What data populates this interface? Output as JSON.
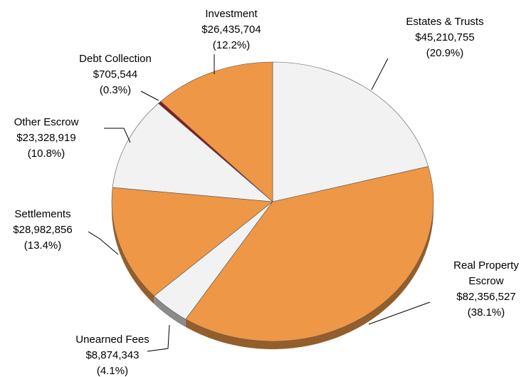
{
  "chart_data": {
    "type": "pie",
    "categories": [
      "Estates & Trusts",
      "Real Property Escrow",
      "Unearned Fees",
      "Settlements",
      "Other Escrow",
      "Debt Collection",
      "Investment"
    ],
    "values": [
      45210755,
      82356527,
      8874343,
      28982856,
      23328919,
      705544,
      26435704
    ],
    "value_labels": [
      "$45,210,755",
      "$82,356,527",
      "$8,874,343",
      "$28,982,856",
      "$23,328,919",
      "$705,544",
      "$26,435,704"
    ],
    "percent_labels": [
      "(20.9%)",
      "(38.1%)",
      "(4.1%)",
      "(13.4%)",
      "(10.8%)",
      "(0.3%)",
      "(12.2%)"
    ],
    "colors": [
      "#f2f2f2",
      "#ed9747",
      "#f2f2f2",
      "#ed9747",
      "#f2f2f2",
      "#8b1a1a",
      "#ed9747"
    ]
  }
}
